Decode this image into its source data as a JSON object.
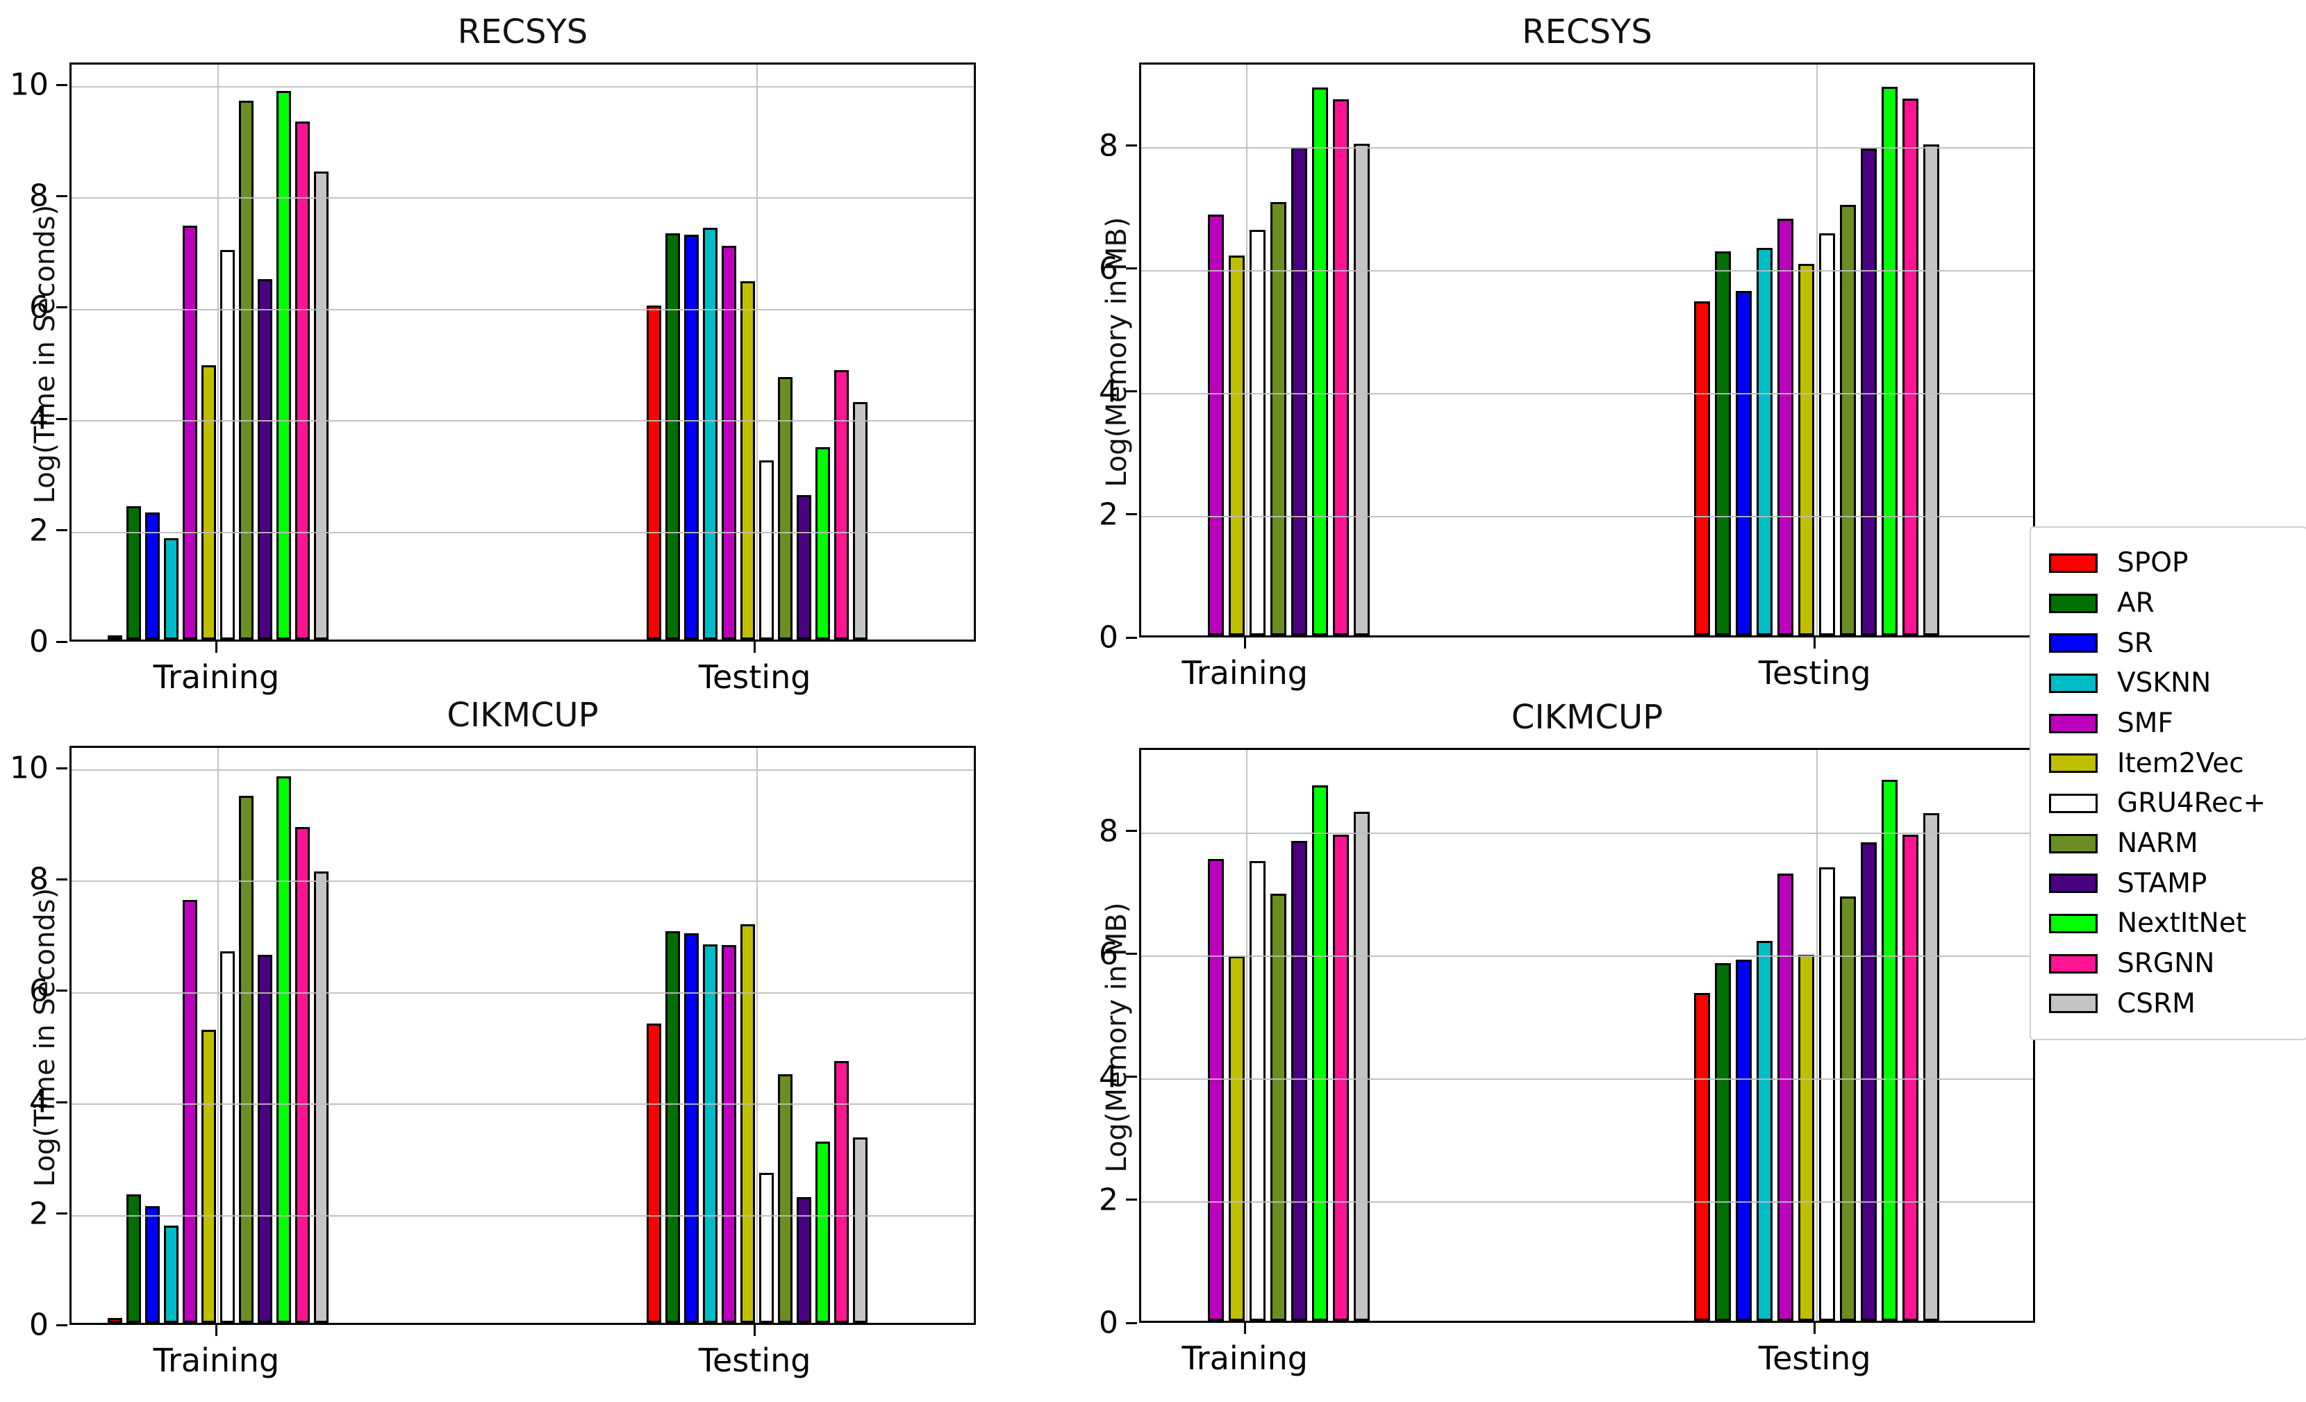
{
  "figure": {
    "background": "#ffffff",
    "grid_color": "#bdbdbd",
    "bar_edge_color": "#000000"
  },
  "legend": {
    "position": "right-middle",
    "entries": [
      {
        "label": "SPOP",
        "color": "#FF0000"
      },
      {
        "label": "AR",
        "color": "#007000"
      },
      {
        "label": "SR",
        "color": "#0000FF"
      },
      {
        "label": "VSKNN",
        "color": "#00BCC6"
      },
      {
        "label": "SMF",
        "color": "#BD00BD"
      },
      {
        "label": "Item2Vec",
        "color": "#BFBF00"
      },
      {
        "label": "GRU4Rec+",
        "color": "#FFFFFF"
      },
      {
        "label": "NARM",
        "color": "#6B8E23"
      },
      {
        "label": "STAMP",
        "color": "#4B0082"
      },
      {
        "label": "NextItNet",
        "color": "#00FF00"
      },
      {
        "label": "SRGNN",
        "color": "#FF1493"
      },
      {
        "label": "CSRM",
        "color": "#C4C4C4"
      }
    ]
  },
  "chart_data": [
    {
      "type": "bar",
      "title": "RECSYS",
      "ylabel": "Log(Time in Seconds)",
      "categories": [
        "Training",
        "Testing"
      ],
      "yticks": [
        0,
        2,
        4,
        6,
        8,
        10
      ],
      "ylim": [
        0,
        10.4
      ],
      "grid": true,
      "legend_position": "none",
      "series": [
        {
          "name": "SPOP",
          "values": [
            0.07,
            6.0
          ]
        },
        {
          "name": "AR",
          "values": [
            2.4,
            7.3
          ]
        },
        {
          "name": "SR",
          "values": [
            2.28,
            7.27
          ]
        },
        {
          "name": "VSKNN",
          "values": [
            1.82,
            7.4
          ]
        },
        {
          "name": "SMF",
          "values": [
            7.43,
            7.07
          ]
        },
        {
          "name": "Item2Vec",
          "values": [
            4.92,
            6.43
          ]
        },
        {
          "name": "GRU4Rec+",
          "values": [
            7.0,
            3.22
          ]
        },
        {
          "name": "NARM",
          "values": [
            9.68,
            4.72
          ]
        },
        {
          "name": "STAMP",
          "values": [
            6.47,
            2.6
          ]
        },
        {
          "name": "NextItNet",
          "values": [
            9.85,
            3.45
          ]
        },
        {
          "name": "SRGNN",
          "values": [
            9.3,
            4.84
          ]
        },
        {
          "name": "CSRM",
          "values": [
            8.4,
            4.26
          ]
        }
      ]
    },
    {
      "type": "bar",
      "title": "RECSYS",
      "ylabel": "Log(Memory in MB)",
      "categories": [
        "Training",
        "Testing"
      ],
      "yticks": [
        0,
        2,
        4,
        6,
        8
      ],
      "ylim": [
        0,
        9.35
      ],
      "grid": true,
      "legend_position": "outside-right",
      "series": [
        {
          "name": "SPOP",
          "values": [
            0,
            5.43
          ]
        },
        {
          "name": "AR",
          "values": [
            0,
            6.25
          ]
        },
        {
          "name": "SR",
          "values": [
            0,
            5.6
          ]
        },
        {
          "name": "VSKNN",
          "values": [
            0,
            6.3
          ]
        },
        {
          "name": "SMF",
          "values": [
            6.84,
            6.78
          ]
        },
        {
          "name": "Item2Vec",
          "values": [
            6.18,
            6.04
          ]
        },
        {
          "name": "GRU4Rec+",
          "values": [
            6.59,
            6.54
          ]
        },
        {
          "name": "NARM",
          "values": [
            7.05,
            7.0
          ]
        },
        {
          "name": "STAMP",
          "values": [
            7.94,
            7.92
          ]
        },
        {
          "name": "NextItNet",
          "values": [
            8.91,
            8.92
          ]
        },
        {
          "name": "SRGNN",
          "values": [
            8.72,
            8.73
          ]
        },
        {
          "name": "CSRM",
          "values": [
            7.99,
            7.98
          ]
        }
      ]
    },
    {
      "type": "bar",
      "title": "CIKMCUP",
      "ylabel": "Log(Time in Seconds)",
      "categories": [
        "Training",
        "Testing"
      ],
      "yticks": [
        0,
        2,
        4,
        6,
        8,
        10
      ],
      "ylim": [
        0,
        10.4
      ],
      "grid": true,
      "legend_position": "none",
      "series": [
        {
          "name": "SPOP",
          "values": [
            0.09,
            5.38
          ]
        },
        {
          "name": "AR",
          "values": [
            2.31,
            7.03
          ]
        },
        {
          "name": "SR",
          "values": [
            2.09,
            7.0
          ]
        },
        {
          "name": "VSKNN",
          "values": [
            1.74,
            6.8
          ]
        },
        {
          "name": "SMF",
          "values": [
            7.59,
            6.78
          ]
        },
        {
          "name": "Item2Vec",
          "values": [
            5.26,
            7.16
          ]
        },
        {
          "name": "GRU4Rec+",
          "values": [
            6.67,
            2.69
          ]
        },
        {
          "name": "NARM",
          "values": [
            9.47,
            4.47
          ]
        },
        {
          "name": "STAMP",
          "values": [
            6.61,
            2.26
          ]
        },
        {
          "name": "NextItNet",
          "values": [
            9.81,
            3.25
          ]
        },
        {
          "name": "SRGNN",
          "values": [
            8.9,
            4.7
          ]
        },
        {
          "name": "CSRM",
          "values": [
            8.1,
            3.33
          ]
        }
      ]
    },
    {
      "type": "bar",
      "title": "CIKMCUP",
      "ylabel": "Log(Memory in MB)",
      "categories": [
        "Training",
        "Testing"
      ],
      "yticks": [
        0,
        2,
        4,
        6,
        8
      ],
      "ylim": [
        0,
        9.35
      ],
      "grid": true,
      "legend_position": "none",
      "series": [
        {
          "name": "SPOP",
          "values": [
            0,
            5.33
          ]
        },
        {
          "name": "AR",
          "values": [
            0,
            5.82
          ]
        },
        {
          "name": "SR",
          "values": [
            0,
            5.87
          ]
        },
        {
          "name": "VSKNN",
          "values": [
            0,
            6.18
          ]
        },
        {
          "name": "SMF",
          "values": [
            7.51,
            7.27
          ]
        },
        {
          "name": "Item2Vec",
          "values": [
            5.93,
            5.95
          ]
        },
        {
          "name": "GRU4Rec+",
          "values": [
            7.48,
            7.37
          ]
        },
        {
          "name": "NARM",
          "values": [
            6.95,
            6.9
          ]
        },
        {
          "name": "STAMP",
          "values": [
            7.8,
            7.78
          ]
        },
        {
          "name": "NextItNet",
          "values": [
            8.71,
            8.8
          ]
        },
        {
          "name": "SRGNN",
          "values": [
            7.91,
            7.9
          ]
        },
        {
          "name": "CSRM",
          "values": [
            8.28,
            8.26
          ]
        }
      ]
    }
  ]
}
